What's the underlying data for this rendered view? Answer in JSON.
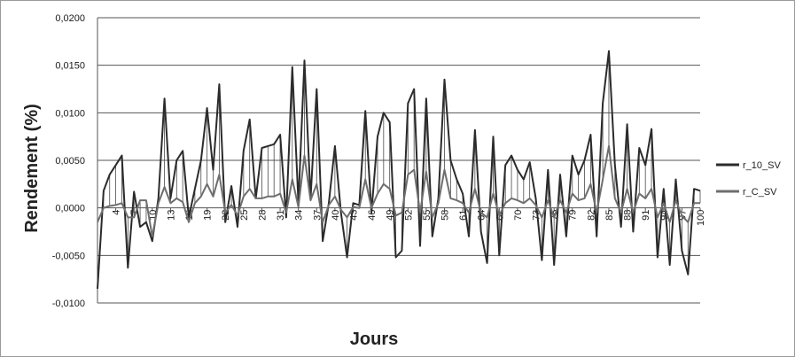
{
  "chart_data": {
    "type": "line",
    "title": "",
    "xlabel": "Jours",
    "ylabel": "Rendement (%)",
    "ylim": [
      -0.01,
      0.02
    ],
    "yticks": [
      "0,0200",
      "0,0150",
      "0,0100",
      "0,0050",
      "0,0000",
      "-0,0050",
      "-0,0100"
    ],
    "ytick_values": [
      0.02,
      0.015,
      0.01,
      0.005,
      0.0,
      -0.005,
      -0.01
    ],
    "xlim": [
      1,
      100
    ],
    "xticks": [
      4,
      7,
      10,
      13,
      16,
      19,
      22,
      25,
      28,
      31,
      34,
      37,
      40,
      43,
      46,
      49,
      52,
      55,
      58,
      61,
      64,
      67,
      70,
      73,
      76,
      79,
      82,
      85,
      88,
      91,
      94,
      97,
      100
    ],
    "grid": true,
    "legend_position": "right",
    "series": [
      {
        "name": "r_10_SV",
        "color": "#2b2b2b",
        "values": [
          -0.0085,
          0.0018,
          0.0035,
          0.0045,
          0.0055,
          -0.0063,
          0.0017,
          -0.002,
          -0.0015,
          -0.0035,
          0.001,
          0.0115,
          0.001,
          0.005,
          0.006,
          -0.001,
          0.002,
          0.005,
          0.0105,
          0.004,
          0.013,
          -0.0015,
          0.0023,
          -0.002,
          0.006,
          0.0093,
          0.001,
          0.0063,
          0.0065,
          0.0067,
          0.0077,
          -0.001,
          0.0148,
          0.0005,
          0.0155,
          0.001,
          0.0125,
          -0.0035,
          0.0005,
          0.0065,
          -0.0005,
          -0.0052,
          0.0005,
          0.0003,
          0.0102,
          -0.0005,
          0.0075,
          0.01,
          0.009,
          -0.0052,
          -0.0045,
          0.011,
          0.0125,
          -0.004,
          0.0115,
          -0.003,
          0.001,
          0.0135,
          0.005,
          0.003,
          0.0015,
          -0.003,
          0.0082,
          -0.0025,
          -0.0058,
          0.0075,
          -0.005,
          0.0045,
          0.0055,
          0.004,
          0.003,
          0.0048,
          0.001,
          -0.0055,
          0.004,
          -0.006,
          0.0035,
          -0.003,
          0.0055,
          0.0035,
          0.005,
          0.0077,
          -0.003,
          0.011,
          0.0165,
          0.0045,
          -0.002,
          0.0088,
          -0.0025,
          0.0063,
          0.0045,
          0.0083,
          -0.0052,
          0.002,
          -0.006,
          0.003,
          -0.0045,
          -0.007,
          0.002,
          0.0018
        ]
      },
      {
        "name": "r_C_SV",
        "color": "#6e6e6e",
        "values": [
          -0.0015,
          0.0,
          0.0002,
          0.0003,
          0.0005,
          -0.001,
          -0.001,
          0.0008,
          0.0008,
          -0.003,
          0.0005,
          0.0022,
          0.0005,
          0.001,
          0.0006,
          -0.0015,
          0.0005,
          0.0012,
          0.0025,
          0.0012,
          0.0035,
          -0.0005,
          0.0003,
          -0.0008,
          0.0012,
          0.002,
          0.001,
          0.001,
          0.0012,
          0.0012,
          0.0015,
          -0.0005,
          0.003,
          0.0001,
          0.0055,
          0.0008,
          0.0025,
          -0.0015,
          0.0003,
          0.0012,
          -0.0002,
          -0.001,
          0.0001,
          0.0,
          0.003,
          0.0,
          0.0015,
          0.0025,
          0.002,
          -0.0008,
          -0.0005,
          0.0035,
          0.004,
          -0.0005,
          0.0038,
          -0.001,
          0.0005,
          0.004,
          0.001,
          0.0008,
          0.0005,
          -0.0005,
          0.002,
          -0.0005,
          -0.001,
          0.0015,
          -0.0008,
          0.0005,
          0.001,
          0.0008,
          0.0005,
          0.001,
          0.0003,
          -0.001,
          0.0008,
          -0.001,
          0.0008,
          -0.0005,
          0.0015,
          0.0008,
          0.001,
          0.0025,
          -0.0005,
          0.003,
          0.0065,
          0.001,
          -0.0005,
          0.002,
          -0.0005,
          0.0015,
          0.001,
          0.002,
          -0.001,
          0.0005,
          -0.0015,
          0.0008,
          -0.0008,
          -0.0015,
          0.0005,
          0.0005
        ]
      }
    ]
  }
}
